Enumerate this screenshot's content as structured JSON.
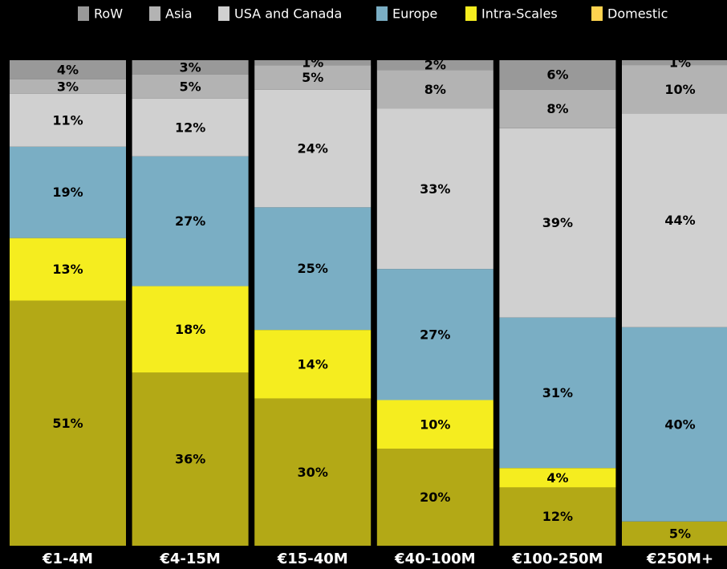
{
  "chart_data": {
    "type": "stacked_bar_100",
    "categories": [
      "€1-4M",
      "€4-15M",
      "€15-40M",
      "€40-100M",
      "€100-250M",
      "€250M+"
    ],
    "series": [
      {
        "name": "Domestic",
        "color": "#b3a916",
        "values": [
          51,
          36,
          30,
          20,
          12,
          5
        ],
        "value_labels": [
          "51%",
          "36%",
          "30%",
          "20%",
          "12%",
          "5%"
        ]
      },
      {
        "name": "Intra-Scales",
        "color": "#f5ed1f",
        "values": [
          13,
          18,
          14,
          10,
          4,
          null
        ],
        "value_labels": [
          "13%",
          "18%",
          "14%",
          "10%",
          "4%",
          null
        ]
      },
      {
        "name": "Europe",
        "color": "#7aaec4",
        "values": [
          19,
          27,
          25,
          27,
          31,
          40
        ],
        "value_labels": [
          "19%",
          "27%",
          "25%",
          "27%",
          "31%",
          "40%"
        ]
      },
      {
        "name": "USA and Canada",
        "color": "#d0d0d0",
        "values": [
          11,
          12,
          24,
          33,
          39,
          44
        ],
        "value_labels": [
          "11%",
          "12%",
          "24%",
          "33%",
          "39%",
          "44%"
        ]
      },
      {
        "name": "Asia",
        "color": "#b3b3b3",
        "values": [
          3,
          5,
          5,
          8,
          8,
          10
        ],
        "value_labels": [
          "3%",
          "5%",
          "5%",
          "8%",
          "8%",
          "10%"
        ]
      },
      {
        "name": "RoW",
        "color": "#999999",
        "values": [
          4,
          3,
          1,
          2,
          6,
          1
        ],
        "value_labels": [
          "4%",
          "3%",
          "1%",
          "2%",
          "6%",
          "1%"
        ]
      }
    ],
    "legend": "top"
  }
}
